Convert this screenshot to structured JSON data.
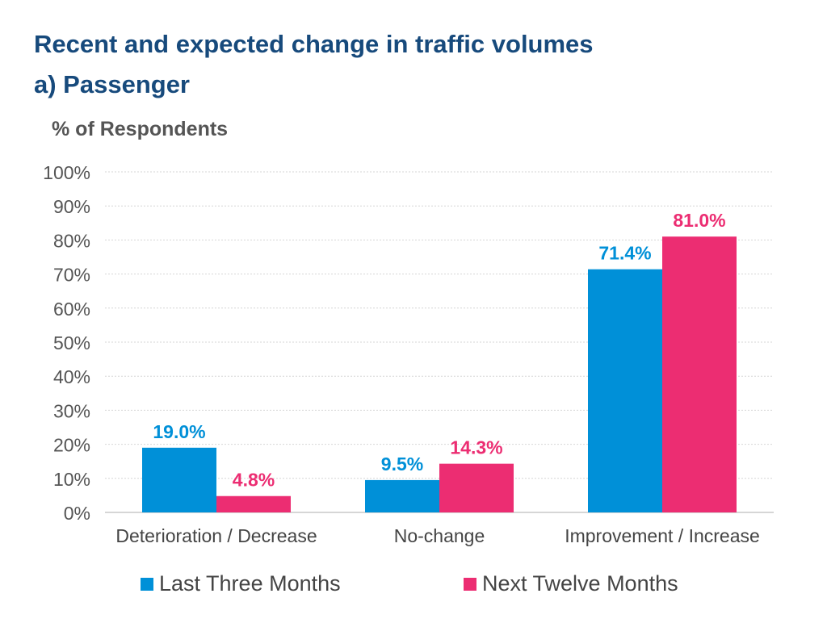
{
  "colors": {
    "series_a": "#0090d8",
    "series_b": "#ec2d72",
    "title": "#174a7c",
    "text": "#555555",
    "grid": "#d6d6d6",
    "axis": "#c8c8c8"
  },
  "chart_data": {
    "type": "bar",
    "title": "Recent and expected change in traffic volumes",
    "subtitle": "a) Passenger",
    "ylabel": "% of Respondents",
    "xlabel": "",
    "categories": [
      "Deterioration / Decrease",
      "No-change",
      "Improvement / Increase"
    ],
    "series": [
      {
        "name": "Last Three Months",
        "values": [
          19.0,
          9.5,
          71.4
        ],
        "labels": [
          "19.0%",
          "9.5%",
          "71.4%"
        ],
        "color": "#0090d8"
      },
      {
        "name": "Next Twelve Months",
        "values": [
          4.8,
          14.3,
          81.0
        ],
        "labels": [
          "4.8%",
          "14.3%",
          "81.0%"
        ],
        "color": "#ec2d72"
      }
    ],
    "ylim": [
      0,
      100
    ],
    "yticks": [
      "0%",
      "10%",
      "20%",
      "30%",
      "40%",
      "50%",
      "60%",
      "70%",
      "80%",
      "90%",
      "100%"
    ],
    "grid": true,
    "legend_position": "bottom"
  }
}
